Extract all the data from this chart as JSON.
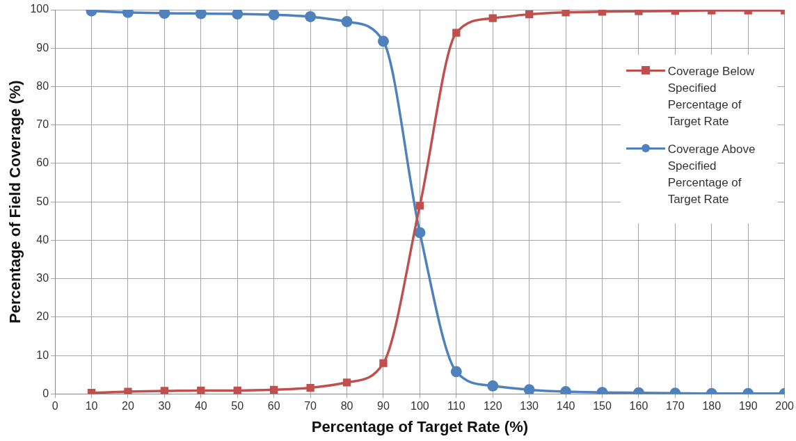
{
  "chart_data": {
    "type": "line",
    "xlabel": "Percentage of Target Rate (%)",
    "ylabel": "Percentage of Field Coverage (%)",
    "x": [
      10,
      20,
      30,
      40,
      50,
      60,
      70,
      80,
      90,
      100,
      110,
      120,
      130,
      140,
      150,
      160,
      170,
      180,
      190,
      200
    ],
    "series": [
      {
        "name": "Coverage Below Specified Percentage of Target Rate",
        "color": "#c0504d",
        "marker": "square",
        "values": [
          0.3,
          0.6,
          0.8,
          0.9,
          0.9,
          1.1,
          1.6,
          3,
          8,
          49,
          94,
          97.8,
          98.8,
          99.3,
          99.5,
          99.6,
          99.7,
          99.8,
          99.8,
          99.8
        ]
      },
      {
        "name": "Coverage Above Specified Percentage of Target Rate",
        "color": "#4f81bd",
        "marker": "circle",
        "values": [
          99.7,
          99.3,
          99.1,
          99,
          98.9,
          98.7,
          98.2,
          96.9,
          91.8,
          42,
          5.8,
          2.1,
          1.1,
          0.6,
          0.4,
          0.3,
          0.2,
          0.1,
          0.1,
          0.1
        ]
      }
    ],
    "xlim": [
      0,
      200
    ],
    "xticks": [
      0,
      10,
      20,
      30,
      40,
      50,
      60,
      70,
      80,
      90,
      100,
      110,
      120,
      130,
      140,
      150,
      160,
      170,
      180,
      190,
      200
    ],
    "ylim": [
      0,
      100
    ],
    "yticks": [
      0,
      10,
      20,
      30,
      40,
      50,
      60,
      70,
      80,
      90,
      100
    ],
    "grid": true,
    "legend": "right",
    "line_style": "solid"
  }
}
